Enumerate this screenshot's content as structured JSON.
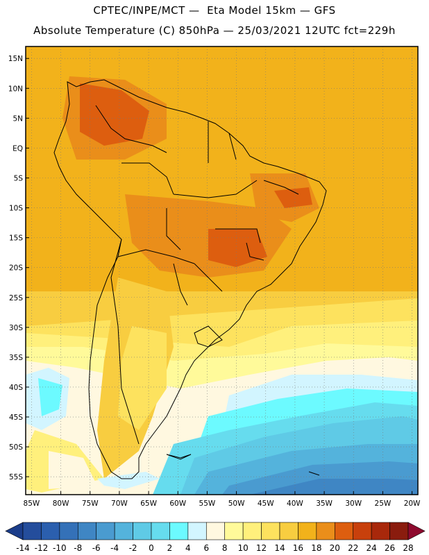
{
  "header": {
    "line1": "CPTEC/INPE/MCT —  Eta Model 15km — GFS",
    "line2": "Absolute Temperature (C) 850hPa — 25/03/2021 12UTC fct=229h"
  },
  "map": {
    "lon_range": [
      -86,
      -19
    ],
    "lat_range": [
      -58,
      17
    ],
    "lat_ticks": [
      {
        "value": 15,
        "label": "15N"
      },
      {
        "value": 10,
        "label": "10N"
      },
      {
        "value": 5,
        "label": "5N"
      },
      {
        "value": 0,
        "label": "EQ"
      },
      {
        "value": -5,
        "label": "5S"
      },
      {
        "value": -10,
        "label": "10S"
      },
      {
        "value": -15,
        "label": "15S"
      },
      {
        "value": -20,
        "label": "20S"
      },
      {
        "value": -25,
        "label": "25S"
      },
      {
        "value": -30,
        "label": "30S"
      },
      {
        "value": -35,
        "label": "35S"
      },
      {
        "value": -40,
        "label": "40S"
      },
      {
        "value": -45,
        "label": "45S"
      },
      {
        "value": -50,
        "label": "50S"
      },
      {
        "value": -55,
        "label": "55S"
      }
    ],
    "lon_ticks": [
      {
        "value": -85,
        "label": "85W"
      },
      {
        "value": -80,
        "label": "80W"
      },
      {
        "value": -75,
        "label": "75W"
      },
      {
        "value": -70,
        "label": "70W"
      },
      {
        "value": -65,
        "label": "65W"
      },
      {
        "value": -60,
        "label": "60W"
      },
      {
        "value": -55,
        "label": "55W"
      },
      {
        "value": -50,
        "label": "50W"
      },
      {
        "value": -45,
        "label": "45W"
      },
      {
        "value": -40,
        "label": "40W"
      },
      {
        "value": -35,
        "label": "35W"
      },
      {
        "value": -30,
        "label": "30W"
      },
      {
        "value": -25,
        "label": "25W"
      },
      {
        "value": -20,
        "label": "20W"
      }
    ],
    "grid": true
  },
  "colorbar": {
    "labels": [
      "-14",
      "-12",
      "-10",
      "-8",
      "-6",
      "-4",
      "-2",
      "0",
      "2",
      "4",
      "6",
      "8",
      "10",
      "12",
      "14",
      "16",
      "18",
      "20",
      "22",
      "24",
      "26",
      "28"
    ],
    "colors": [
      "#1b3d8a",
      "#244d9c",
      "#2b5fae",
      "#3471b8",
      "#3f86c4",
      "#4a9bd0",
      "#54b3dc",
      "#5fcae6",
      "#66dcee",
      "#6cfaff",
      "#d2f5ff",
      "#fff8e0",
      "#fffa9a",
      "#fff07c",
      "#fde25e",
      "#f8cd40",
      "#f2b21b",
      "#ea8e1a",
      "#dd5e0f",
      "#c8400c",
      "#a8280b",
      "#8a1c0e",
      "#7a1620",
      "#8e0a2e"
    ]
  }
}
